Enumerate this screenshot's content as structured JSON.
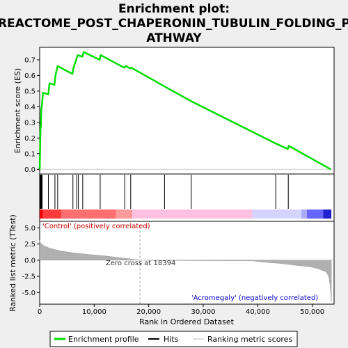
{
  "chart_data": {
    "type": "line",
    "title_lines": [
      "Enrichment plot:",
      "REACTOME_POST_CHAPERONIN_TUBULIN_FOLDING_P",
      "ATHWAY"
    ],
    "xlabel": "Rank in Ordered Dataset",
    "ylabel_top": "Enrichment score (ES)",
    "ylabel_bottom": "Ranked list metric (TTest)",
    "xlim": [
      0,
      54000
    ],
    "x_ticks": [
      0,
      10000,
      20000,
      30000,
      40000,
      50000
    ],
    "x_tick_labels": [
      "0",
      "10,000",
      "20,000",
      "30,000",
      "40,000",
      "50,000"
    ],
    "es_ylim": [
      -0.03,
      0.78
    ],
    "es_ticks": [
      0.0,
      0.1,
      0.2,
      0.3,
      0.4,
      0.5,
      0.6,
      0.7
    ],
    "es_tick_labels": [
      "0.0",
      "0.1",
      "0.2",
      "0.3",
      "0.4",
      "0.5",
      "0.6",
      "0.7"
    ],
    "metric_ylim": [
      -6.8,
      6.0
    ],
    "metric_ticks": [
      5.0,
      2.5,
      0.0,
      -2.5,
      -5.0
    ],
    "metric_tick_labels": [
      "5.0",
      "2.5",
      "0.0",
      "-2.5",
      "-5.0"
    ],
    "series": [
      {
        "name": "Enrichment profile",
        "color": "#00dd00",
        "x": [
          0,
          150,
          200,
          300,
          400,
          600,
          1600,
          1800,
          2700,
          2900,
          3300,
          6000,
          6200,
          6700,
          7000,
          7800,
          8100,
          11000,
          11200,
          15500,
          15800,
          16600,
          16800,
          22900,
          27800,
          43300,
          45500,
          45700,
          53400
        ],
        "y": [
          0.0,
          0.26,
          0.27,
          0.39,
          0.4,
          0.49,
          0.48,
          0.55,
          0.54,
          0.6,
          0.66,
          0.61,
          0.65,
          0.7,
          0.73,
          0.72,
          0.75,
          0.7,
          0.73,
          0.65,
          0.66,
          0.645,
          0.65,
          0.53,
          0.435,
          0.165,
          0.13,
          0.15,
          0.0
        ]
      }
    ],
    "hits": [
      100,
      200,
      250,
      300,
      350,
      400,
      450,
      1600,
      2800,
      3300,
      6100,
      6800,
      7100,
      7900,
      11100,
      15600,
      16700,
      22900,
      27800,
      43300,
      45600
    ],
    "hits_label": "Hits",
    "metric_series_label": "Ranking metric scores",
    "metric_profile": {
      "x": [
        0,
        200,
        800,
        2000,
        4000,
        6000,
        8000,
        10000,
        12000,
        14000,
        16000,
        18394,
        22000,
        30000,
        39000,
        41000,
        44000,
        46000,
        48000,
        49500,
        51000,
        52500,
        53000,
        53300,
        53500
      ],
      "y": [
        3.1,
        2.6,
        2.2,
        1.8,
        1.4,
        1.15,
        0.95,
        0.8,
        0.65,
        0.45,
        0.25,
        0.0,
        -0.05,
        -0.08,
        -0.1,
        -0.3,
        -0.5,
        -0.7,
        -0.9,
        -1.0,
        -1.3,
        -1.8,
        -2.5,
        -4.0,
        -6.5
      ]
    },
    "zero_cross": 18394,
    "zero_cross_label": "Zero cross at 18394",
    "pos_label": "'Control' (positively correlated)",
    "neg_label": "'Acromegaly' (negatively correlated)",
    "colors": {
      "es_line": "#00dd00",
      "pos_label": "#cc0000",
      "neg_label": "#0000cc",
      "metric_fill": "#b0b0b0",
      "grid_line": "#cccccc"
    },
    "colorbar": [
      {
        "from": 0,
        "to": 600,
        "color": "#ee0000"
      },
      {
        "from": 600,
        "to": 4000,
        "color": "#ff3b3b"
      },
      {
        "from": 4000,
        "to": 14000,
        "color": "#ff6f6f"
      },
      {
        "from": 14000,
        "to": 17000,
        "color": "#ff9a9a"
      },
      {
        "from": 17000,
        "to": 39000,
        "color": "#fdc0e0"
      },
      {
        "from": 39000,
        "to": 48000,
        "color": "#d4d4ff"
      },
      {
        "from": 48000,
        "to": 49000,
        "color": "#aaaaff"
      },
      {
        "from": 49000,
        "to": 52000,
        "color": "#6666ff"
      },
      {
        "from": 52000,
        "to": 53500,
        "color": "#2020cc"
      }
    ]
  }
}
